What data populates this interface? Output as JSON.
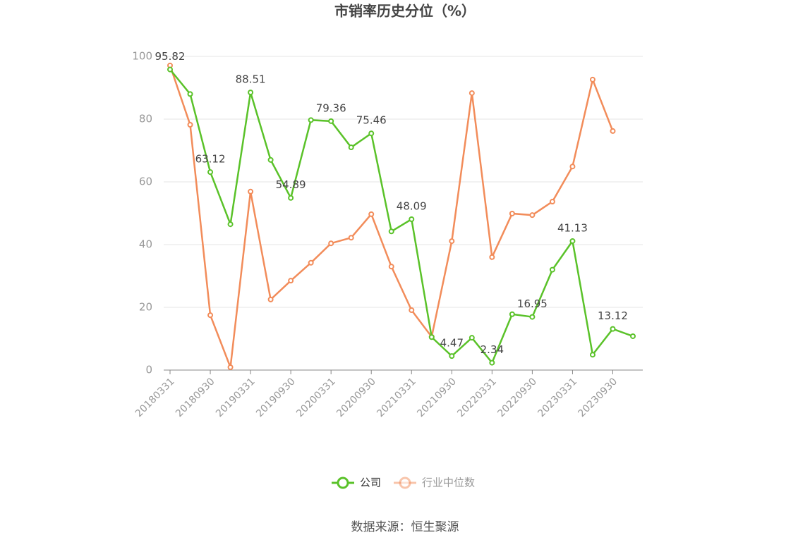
{
  "chart_data": {
    "type": "line",
    "title": "市销率历史分位（%）",
    "source": "数据来源：恒生聚源",
    "categories": [
      "20180331",
      null,
      "20180930",
      null,
      "20190331",
      null,
      "20190930",
      null,
      "20200331",
      null,
      "20200930",
      null,
      "20210331",
      null,
      "20210930",
      null,
      "20220331",
      null,
      "20220930",
      null,
      "20230331",
      null,
      "20230930",
      null
    ],
    "series": [
      {
        "name": "公司",
        "color": "#5ac229",
        "values": [
          95.82,
          88,
          63.12,
          46.5,
          88.51,
          67,
          54.89,
          79.7,
          79.36,
          71,
          75.46,
          44.2,
          48.09,
          10.5,
          4.47,
          10.3,
          2.34,
          17.8,
          16.95,
          32,
          41.13,
          4.9,
          13.12,
          10.8
        ],
        "value_labels": [
          "95.82",
          null,
          "63.12",
          null,
          "88.51",
          null,
          "54.89",
          null,
          "79.36",
          null,
          "75.46",
          null,
          "48.09",
          null,
          "4.47",
          null,
          "2.34",
          null,
          "16.95",
          null,
          "41.13",
          null,
          "13.12",
          null
        ]
      },
      {
        "name": "行业中位数",
        "color": "#f28c5a",
        "values": [
          97.1,
          78.2,
          17.5,
          0.9,
          56.9,
          22.5,
          28.5,
          34.2,
          40.4,
          42.2,
          49.7,
          33,
          19.1,
          10.6,
          41.1,
          88.3,
          36,
          49.9,
          49.4,
          53.7,
          64.9,
          92.6,
          76.2,
          null
        ]
      }
    ],
    "ylim": [
      0,
      100
    ],
    "yticks": [
      0,
      20,
      40,
      60,
      80,
      100
    ],
    "grid": true
  }
}
